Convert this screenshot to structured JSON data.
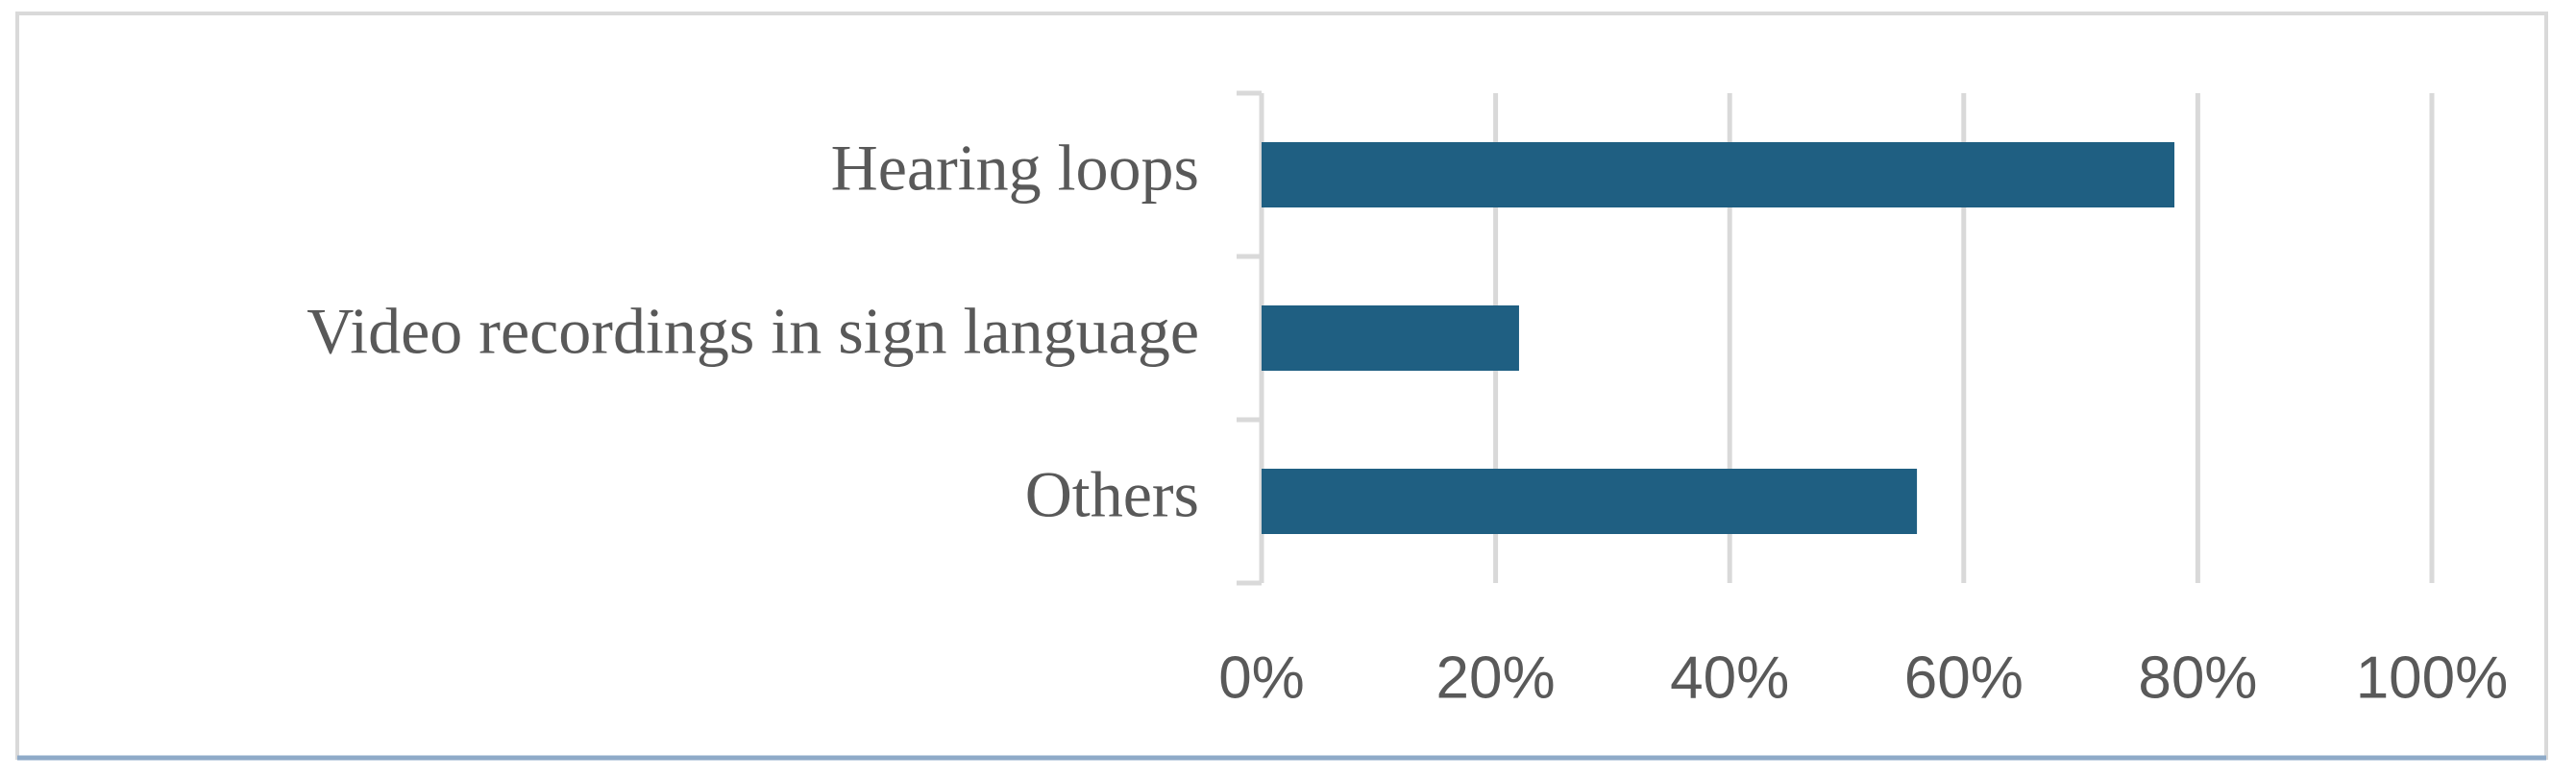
{
  "chart_data": {
    "type": "bar",
    "orientation": "horizontal",
    "categories": [
      "Hearing loops",
      "Video recordings in sign language",
      "Others"
    ],
    "values": [
      78,
      22,
      56
    ],
    "color": "#1f5f82",
    "xlim": [
      0,
      100
    ],
    "xticks": [
      {
        "value": 0,
        "label": "0%"
      },
      {
        "value": 20,
        "label": "20%"
      },
      {
        "value": 40,
        "label": "40%"
      },
      {
        "value": 60,
        "label": "60%"
      },
      {
        "value": 80,
        "label": "80%"
      },
      {
        "value": 100,
        "label": "100%"
      }
    ],
    "grid": true
  }
}
